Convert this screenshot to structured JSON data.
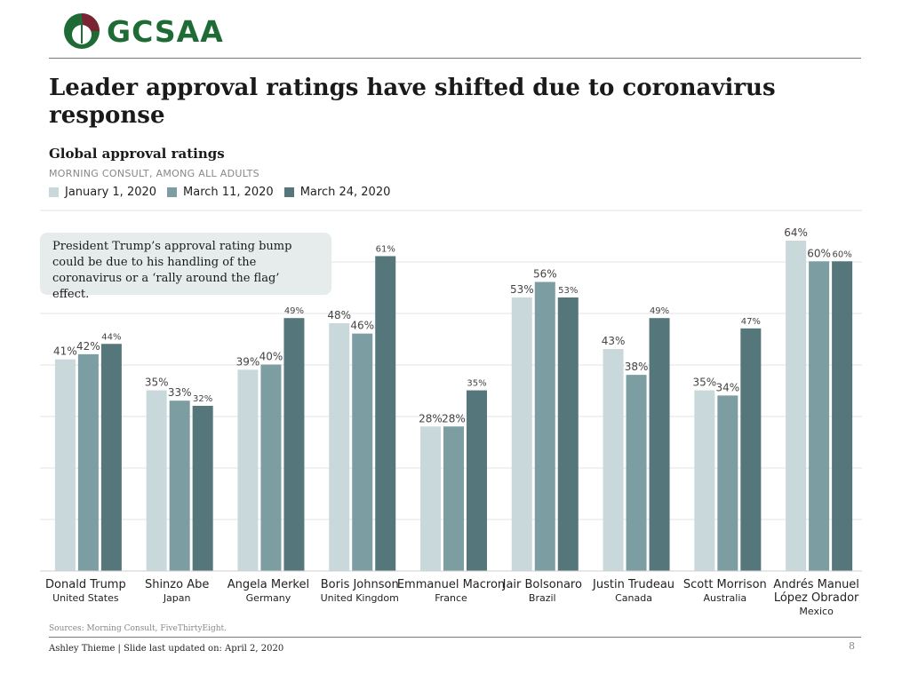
{
  "logo": {
    "text": "GCSAA"
  },
  "title": "Leader approval ratings have shifted due to coronavirus response",
  "subtitle": "Global approval ratings",
  "source_line": "MORNING CONSULT, AMONG ALL ADULTS",
  "callout": "President Trump’s approval rating bump could be due to his handling of the coronavirus or a ‘rally around the flag’ effect.",
  "sources": "Sources: Morning Consult, FiveThirtyEight.",
  "footer": "Ashley Thieme | Slide last updated on: April 2, 2020",
  "page_number": "8",
  "colors": {
    "jan": "#c9d8da",
    "mar11": "#7c9ea2",
    "mar24": "#55767a",
    "logo_green": "#1e6b35",
    "logo_maroon": "#7a2333"
  },
  "chart_data": {
    "type": "bar",
    "title": "Global approval ratings",
    "ylabel": "",
    "xlabel": "",
    "ylim": [
      0,
      64
    ],
    "grid": true,
    "legend_position": "top-left",
    "categories": [
      {
        "leader": "Donald Trump",
        "country": "United States"
      },
      {
        "leader": "Shinzo Abe",
        "country": "Japan"
      },
      {
        "leader": "Angela Merkel",
        "country": "Germany"
      },
      {
        "leader": "Boris Johnson",
        "country": "United Kingdom"
      },
      {
        "leader": "Emmanuel Macron",
        "country": "France"
      },
      {
        "leader": "Jair Bolsonaro",
        "country": "Brazil"
      },
      {
        "leader": "Justin Trudeau",
        "country": "Canada"
      },
      {
        "leader": "Scott Morrison",
        "country": "Australia"
      },
      {
        "leader": "Andrés Manuel López Obrador",
        "country": "Mexico"
      }
    ],
    "series": [
      {
        "name": "January 1, 2020",
        "values": [
          41,
          35,
          39,
          48,
          28,
          53,
          43,
          35,
          64
        ]
      },
      {
        "name": "March 11, 2020",
        "values": [
          42,
          33,
          40,
          46,
          28,
          56,
          38,
          34,
          60
        ]
      },
      {
        "name": "March 24, 2020",
        "values": [
          44,
          32,
          49,
          61,
          35,
          53,
          49,
          47,
          60
        ]
      }
    ]
  }
}
